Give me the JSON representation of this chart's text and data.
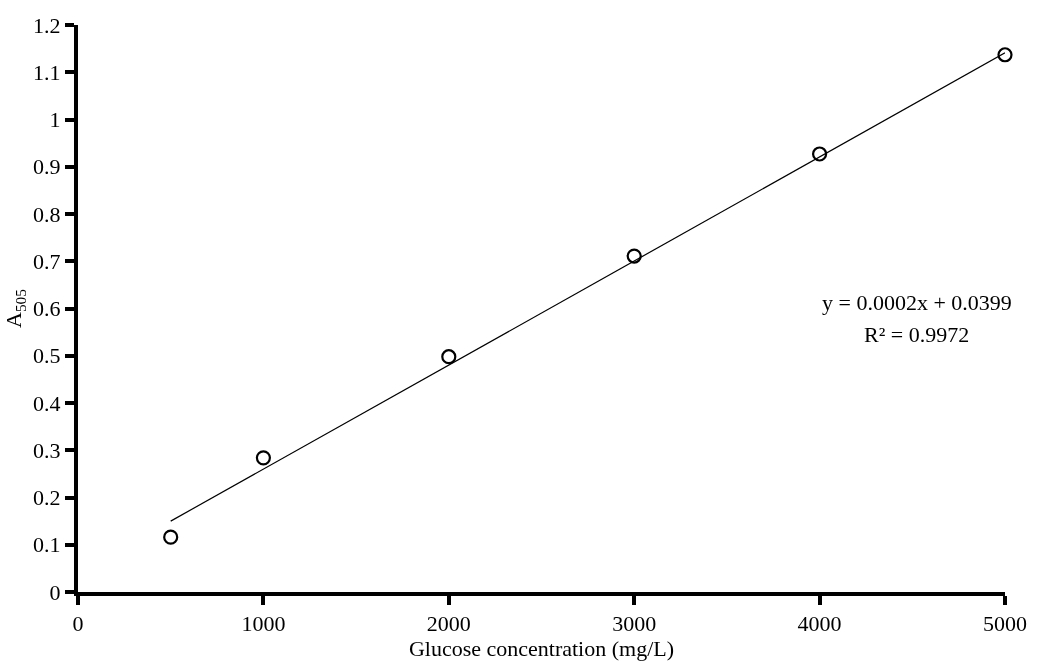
{
  "chart_data": {
    "type": "scatter",
    "xlabel": "Glucose concentration (mg/L)",
    "ylabel": "A$_{505}$",
    "series": [
      {
        "color": "#000000",
        "marker": "circle",
        "x": [
          500,
          1000,
          2000,
          3000,
          4000,
          5000
        ],
        "values": [
          0.116,
          0.284,
          0.498,
          0.711,
          0.927,
          1.137
        ]
      },
      {
        "type": "line",
        "color": "#000000",
        "line_style": "solid",
        "x": [
          500,
          5000
        ],
        "values": [
          0.15,
          1.141
        ]
      }
    ],
    "annotations": [
      "y = 0.0002x + 0.0399",
      "R² = 0.9972"
    ],
    "xlim": [
      0,
      5000
    ],
    "xticks": [
      0,
      1000,
      2000,
      3000,
      4000,
      5000
    ],
    "ylim": [
      0,
      1.2
    ],
    "yticks": [
      0,
      0.1,
      0.2,
      0.3,
      0.4,
      0.5,
      0.6,
      0.7,
      0.8,
      0.9,
      1,
      1.1,
      1.2
    ]
  }
}
